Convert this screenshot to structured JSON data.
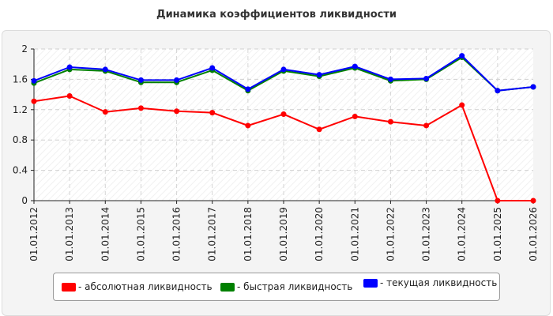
{
  "chart_data": {
    "type": "line",
    "title": "Динамика коэффициентов ликвидности",
    "categories": [
      "01.01.2012",
      "01.01.2013",
      "01.01.2014",
      "01.01.2015",
      "01.01.2016",
      "01.01.2017",
      "01.01.2018",
      "01.01.2019",
      "01.01.2020",
      "01.01.2021",
      "01.01.2022",
      "01.01.2023",
      "01.01.2024",
      "01.01.2025",
      "01.01.2026"
    ],
    "ylim": [
      0,
      2
    ],
    "yticks": [
      "0",
      "0.4",
      "0.8",
      "1.2",
      "1.6",
      "2"
    ],
    "grid": true,
    "legend_position": "bottom",
    "series": [
      {
        "name": "- абсолютная ликвидность",
        "color": "#ff0000",
        "values": [
          1.31,
          1.38,
          1.17,
          1.22,
          1.18,
          1.16,
          0.99,
          1.14,
          0.94,
          1.11,
          1.04,
          0.99,
          1.26,
          0.0,
          0.0
        ]
      },
      {
        "name": "- быстрая ликвидность",
        "color": "#008000",
        "values": [
          1.55,
          1.73,
          1.71,
          1.56,
          1.56,
          1.72,
          1.45,
          1.71,
          1.64,
          1.75,
          1.58,
          1.6,
          1.89,
          1.45,
          1.5
        ]
      },
      {
        "name": "- текущая ликвидность",
        "color": "#0000ff",
        "values": [
          1.58,
          1.76,
          1.73,
          1.59,
          1.59,
          1.75,
          1.47,
          1.73,
          1.66,
          1.77,
          1.6,
          1.61,
          1.91,
          1.45,
          1.5
        ]
      }
    ]
  }
}
